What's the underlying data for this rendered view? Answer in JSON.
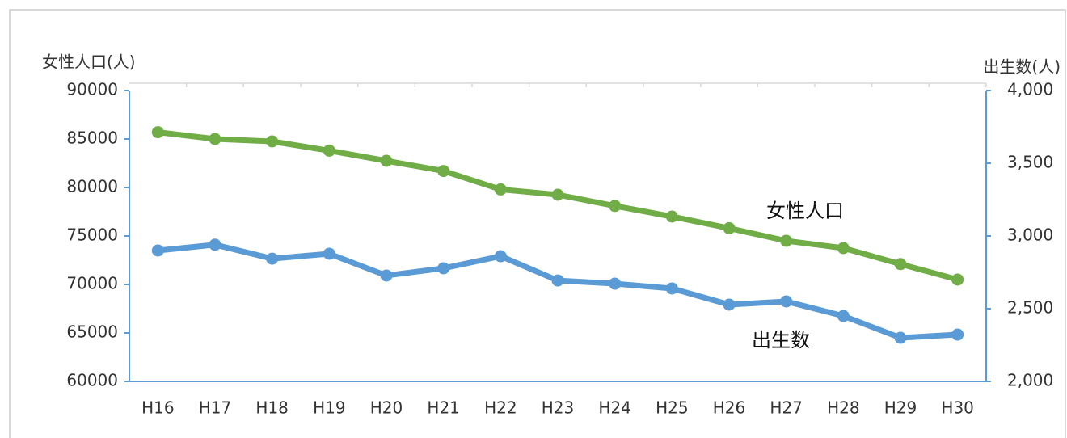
{
  "chart_data": {
    "type": "line",
    "ylabel": "女性人口(人)",
    "y2label": "出生数(人)",
    "categories": [
      "H16",
      "H17",
      "H18",
      "H19",
      "H20",
      "H21",
      "H22",
      "H23",
      "H24",
      "H25",
      "H26",
      "H27",
      "H28",
      "H29",
      "H30"
    ],
    "series": [
      {
        "name": "女性人口",
        "color": "#70ad47",
        "values": [
          85700,
          85000,
          84750,
          83800,
          82750,
          81700,
          79800,
          79250,
          78100,
          77000,
          75800,
          74500,
          73750,
          72100,
          70500
        ]
      },
      {
        "name": "出生数",
        "color": "#5b9bd5",
        "axis": "y2",
        "values": [
          2900,
          2940,
          2844,
          2878,
          2728,
          2778,
          2861,
          2694,
          2672,
          2639,
          2528,
          2550,
          2450,
          2300,
          2322
        ]
      }
    ],
    "ylim": [
      60000,
      90000
    ],
    "yticks": [
      60000,
      65000,
      70000,
      75000,
      80000,
      85000,
      90000
    ],
    "y2lim": [
      2000,
      4000
    ],
    "y2ticks": [
      {
        "value": 2000,
        "label": "2,000"
      },
      {
        "value": 2500,
        "label": "2,500"
      },
      {
        "value": 3000,
        "label": "3,000"
      },
      {
        "value": 3500,
        "label": "3,500"
      },
      {
        "value": 4000,
        "label": "4,000"
      }
    ]
  }
}
